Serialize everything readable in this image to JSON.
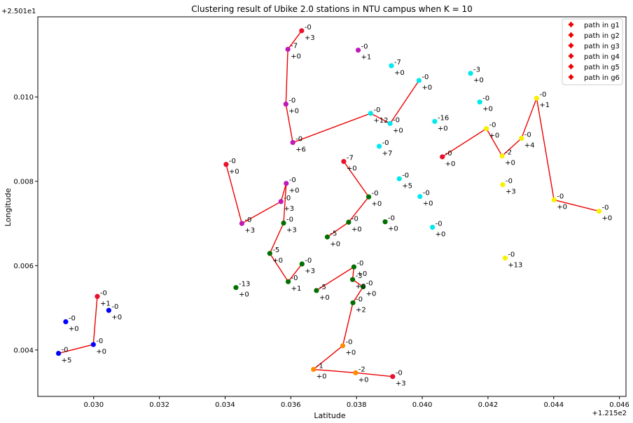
{
  "chart_data": {
    "type": "scatter",
    "title": "Clustering result of Ubike 2.0 stations in NTU campus when K = 10",
    "xlabel": "Latitude",
    "ylabel": "Longitude",
    "x_offset_label": "+1.215e2",
    "y_offset_label": "+2.501e1",
    "xlim": [
      0.0283,
      0.0462
    ],
    "ylim": [
      0.0029,
      0.0119
    ],
    "x_ticks": [
      0.03,
      0.032,
      0.034,
      0.036,
      0.038,
      0.04,
      0.042,
      0.044,
      0.046
    ],
    "x_tick_labels": [
      "0.030",
      "0.032",
      "0.034",
      "0.036",
      "0.038",
      "0.040",
      "0.042",
      "0.044",
      "0.046"
    ],
    "y_ticks": [
      0.004,
      0.006,
      0.008,
      0.01
    ],
    "y_tick_labels": [
      "0.004",
      "0.006",
      "0.008",
      "0.010"
    ],
    "grid": false,
    "legend_position": "top-right",
    "legend": [
      {
        "label": "path in g1"
      },
      {
        "label": "path in g2"
      },
      {
        "label": "path in g3"
      },
      {
        "label": "path in g4"
      },
      {
        "label": "path in g5"
      },
      {
        "label": "path in g6"
      }
    ],
    "colors": {
      "blue": "#0000ff",
      "red": "#e8102a",
      "magenta": "#c018b8",
      "cyan": "#00e8f0",
      "yellow": "#f8f000",
      "green": "#007000",
      "orange": "#ff8c00",
      "path": "#ee0000"
    },
    "points": [
      {
        "x": 0.02915,
        "y": 0.00467,
        "c": "blue",
        "l1": "-0",
        "l2": "+0"
      },
      {
        "x": 0.02893,
        "y": 0.00392,
        "c": "blue",
        "l1": "-0",
        "l2": "+5"
      },
      {
        "x": 0.02999,
        "y": 0.00413,
        "c": "blue",
        "l1": "-0",
        "l2": "+0"
      },
      {
        "x": 0.03046,
        "y": 0.00494,
        "c": "blue",
        "l1": "-0",
        "l2": "+0"
      },
      {
        "x": 0.03011,
        "y": 0.00527,
        "c": "red",
        "l1": "-0",
        "l2": "+1"
      },
      {
        "x": 0.03633,
        "y": 0.01157,
        "c": "red",
        "l1": "-0",
        "l2": "+3"
      },
      {
        "x": 0.03403,
        "y": 0.0084,
        "c": "red",
        "l1": "-0",
        "l2": "+0"
      },
      {
        "x": 0.03761,
        "y": 0.00847,
        "c": "red",
        "l1": "-7",
        "l2": "+0"
      },
      {
        "x": 0.04061,
        "y": 0.00858,
        "c": "red",
        "l1": "-0",
        "l2": "+0"
      },
      {
        "x": 0.03591,
        "y": 0.01113,
        "c": "magenta",
        "l1": "-7",
        "l2": "+0"
      },
      {
        "x": 0.03585,
        "y": 0.00983,
        "c": "magenta",
        "l1": "-0",
        "l2": "+0"
      },
      {
        "x": 0.03606,
        "y": 0.00892,
        "c": "magenta",
        "l1": "-0",
        "l2": "+6"
      },
      {
        "x": 0.03805,
        "y": 0.01111,
        "c": "magenta",
        "l1": "-0",
        "l2": "+1"
      },
      {
        "x": 0.03586,
        "y": 0.00795,
        "c": "magenta",
        "l1": "-0",
        "l2": "+0"
      },
      {
        "x": 0.0357,
        "y": 0.00752,
        "c": "magenta",
        "l1": "-0",
        "l2": "+3"
      },
      {
        "x": 0.03451,
        "y": 0.007,
        "c": "magenta",
        "l1": "-0",
        "l2": "+3"
      },
      {
        "x": 0.03843,
        "y": 0.00961,
        "c": "cyan",
        "l1": "-0",
        "l2": "+12"
      },
      {
        "x": 0.03902,
        "y": 0.00937,
        "c": "cyan",
        "l1": "-0",
        "l2": "+0"
      },
      {
        "x": 0.0399,
        "y": 0.01039,
        "c": "cyan",
        "l1": "-0",
        "l2": "+0"
      },
      {
        "x": 0.03906,
        "y": 0.01074,
        "c": "cyan",
        "l1": "-7",
        "l2": "+0"
      },
      {
        "x": 0.04147,
        "y": 0.01056,
        "c": "cyan",
        "l1": "-3",
        "l2": "+0"
      },
      {
        "x": 0.04175,
        "y": 0.00988,
        "c": "cyan",
        "l1": "-0",
        "l2": "+0"
      },
      {
        "x": 0.04038,
        "y": 0.00942,
        "c": "cyan",
        "l1": "-16",
        "l2": "+0"
      },
      {
        "x": 0.03869,
        "y": 0.00883,
        "c": "cyan",
        "l1": "-0",
        "l2": "+7"
      },
      {
        "x": 0.0393,
        "y": 0.00806,
        "c": "cyan",
        "l1": "-0",
        "l2": "+5"
      },
      {
        "x": 0.03993,
        "y": 0.00764,
        "c": "cyan",
        "l1": "-0",
        "l2": "+0"
      },
      {
        "x": 0.04031,
        "y": 0.00691,
        "c": "cyan",
        "l1": "-0",
        "l2": "+0"
      },
      {
        "x": 0.04195,
        "y": 0.00925,
        "c": "yellow",
        "l1": "-0",
        "l2": "+0"
      },
      {
        "x": 0.04243,
        "y": 0.0086,
        "c": "yellow",
        "l1": "-2",
        "l2": "+0"
      },
      {
        "x": 0.04302,
        "y": 0.00902,
        "c": "yellow",
        "l1": "-0",
        "l2": "+4"
      },
      {
        "x": 0.04348,
        "y": 0.00997,
        "c": "yellow",
        "l1": "-0",
        "l2": "+1"
      },
      {
        "x": 0.04401,
        "y": 0.00756,
        "c": "yellow",
        "l1": "-0",
        "l2": "+0"
      },
      {
        "x": 0.04538,
        "y": 0.00729,
        "c": "yellow",
        "l1": "-0",
        "l2": "+0"
      },
      {
        "x": 0.04245,
        "y": 0.00792,
        "c": "yellow",
        "l1": "-0",
        "l2": "+3"
      },
      {
        "x": 0.04252,
        "y": 0.00618,
        "c": "yellow",
        "l1": "-0",
        "l2": "+13"
      },
      {
        "x": 0.03837,
        "y": 0.00763,
        "c": "green",
        "l1": "-0",
        "l2": "+0"
      },
      {
        "x": 0.03776,
        "y": 0.00703,
        "c": "green",
        "l1": "-0",
        "l2": "+0"
      },
      {
        "x": 0.03711,
        "y": 0.00668,
        "c": "green",
        "l1": "-5",
        "l2": "+0"
      },
      {
        "x": 0.03887,
        "y": 0.00704,
        "c": "green",
        "l1": "-0",
        "l2": "+0"
      },
      {
        "x": 0.03578,
        "y": 0.00701,
        "c": "green",
        "l1": "-0",
        "l2": "+3"
      },
      {
        "x": 0.03536,
        "y": 0.00629,
        "c": "green",
        "l1": "-5",
        "l2": "+0"
      },
      {
        "x": 0.03592,
        "y": 0.00562,
        "c": "green",
        "l1": "-0",
        "l2": "+1"
      },
      {
        "x": 0.03634,
        "y": 0.00604,
        "c": "green",
        "l1": "-0",
        "l2": "+3"
      },
      {
        "x": 0.03433,
        "y": 0.00548,
        "c": "green",
        "l1": "-13",
        "l2": "+0"
      },
      {
        "x": 0.03678,
        "y": 0.00541,
        "c": "green",
        "l1": "-5",
        "l2": "+0"
      },
      {
        "x": 0.03792,
        "y": 0.00597,
        "c": "green",
        "l1": "-0",
        "l2": "+0"
      },
      {
        "x": 0.03788,
        "y": 0.00567,
        "c": "green",
        "l1": "-3",
        "l2": "+0"
      },
      {
        "x": 0.0382,
        "y": 0.0055,
        "c": "green",
        "l1": "-0",
        "l2": "+0"
      },
      {
        "x": 0.03789,
        "y": 0.00512,
        "c": "green",
        "l1": "-0",
        "l2": "+2"
      },
      {
        "x": 0.03758,
        "y": 0.0041,
        "c": "orange",
        "l1": "-0",
        "l2": "+0"
      },
      {
        "x": 0.03669,
        "y": 0.00354,
        "c": "orange",
        "l1": "-1",
        "l2": "+0"
      },
      {
        "x": 0.03797,
        "y": 0.00346,
        "c": "orange",
        "l1": "-2",
        "l2": "+0"
      },
      {
        "x": 0.0391,
        "y": 0.00337,
        "c": "red",
        "l1": "-0",
        "l2": "+3"
      }
    ],
    "paths": [
      [
        [
          0.02893,
          0.00392
        ],
        [
          0.02999,
          0.00413
        ],
        [
          0.03011,
          0.00527
        ]
      ],
      [
        [
          0.03633,
          0.01157
        ],
        [
          0.03591,
          0.01113
        ],
        [
          0.03585,
          0.00983
        ],
        [
          0.03606,
          0.00892
        ],
        [
          0.03843,
          0.00961
        ],
        [
          0.03902,
          0.00937
        ],
        [
          0.0399,
          0.01039
        ]
      ],
      [
        [
          0.03403,
          0.0084
        ],
        [
          0.03451,
          0.007
        ],
        [
          0.0357,
          0.00752
        ],
        [
          0.03586,
          0.00795
        ],
        [
          0.03578,
          0.00701
        ],
        [
          0.03536,
          0.00629
        ],
        [
          0.03592,
          0.00562
        ],
        [
          0.03634,
          0.00604
        ]
      ],
      [
        [
          0.03761,
          0.00847
        ],
        [
          0.03837,
          0.00763
        ],
        [
          0.03776,
          0.00703
        ],
        [
          0.03711,
          0.00668
        ]
      ],
      [
        [
          0.04061,
          0.00858
        ],
        [
          0.04195,
          0.00925
        ],
        [
          0.04243,
          0.0086
        ],
        [
          0.04302,
          0.00902
        ],
        [
          0.04348,
          0.00997
        ],
        [
          0.04401,
          0.00756
        ],
        [
          0.04538,
          0.00729
        ]
      ],
      [
        [
          0.03678,
          0.00541
        ],
        [
          0.03792,
          0.00597
        ],
        [
          0.03788,
          0.00567
        ],
        [
          0.0382,
          0.0055
        ],
        [
          0.03789,
          0.00512
        ],
        [
          0.03758,
          0.0041
        ],
        [
          0.03669,
          0.00354
        ],
        [
          0.03797,
          0.00346
        ],
        [
          0.0391,
          0.00337
        ]
      ]
    ]
  }
}
